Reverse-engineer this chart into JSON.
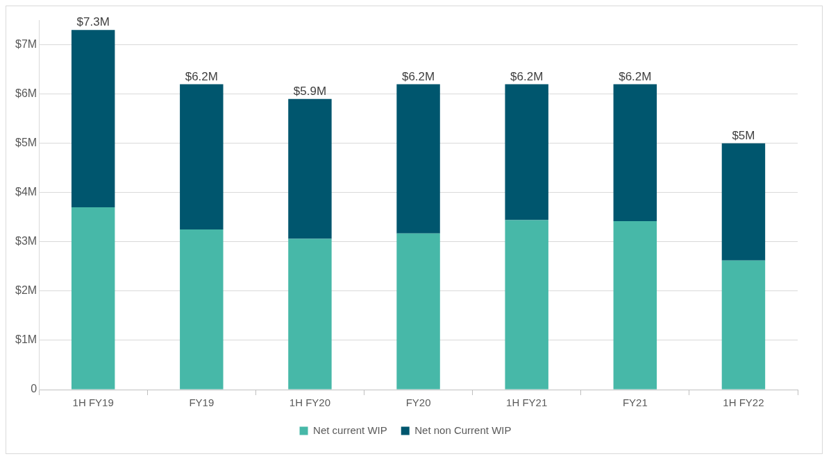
{
  "chart_data": {
    "type": "bar",
    "stacked": true,
    "categories": [
      "1H FY19",
      "FY19",
      "1H FY20",
      "FY20",
      "1H FY21",
      "FY21",
      "1H FY22"
    ],
    "series": [
      {
        "name": "Net current WIP",
        "color": "#47b8a8",
        "values": [
          3.7,
          3.25,
          3.06,
          3.17,
          3.44,
          3.42,
          2.62
        ]
      },
      {
        "name": "Net non Current WIP",
        "color": "#00566e",
        "values": [
          3.6,
          2.95,
          2.84,
          3.03,
          2.76,
          2.78,
          2.38
        ]
      }
    ],
    "totals": [
      "$7.3M",
      "$6.2M",
      "$5.9M",
      "$6.2M",
      "$6.2M",
      "$6.2M",
      "$5M"
    ],
    "ylim": [
      0,
      7.5
    ],
    "yticks": [
      0,
      {
        "value": 1,
        "label": "$1M"
      },
      {
        "value": 2,
        "label": "$2M"
      },
      {
        "value": 3,
        "label": "$3M"
      },
      {
        "value": 4,
        "label": "$4M"
      },
      {
        "value": 5,
        "label": "$5M"
      },
      {
        "value": 6,
        "label": "$6M"
      },
      {
        "value": 7,
        "label": "$7M"
      }
    ],
    "grid": "y",
    "legend": "bottom"
  }
}
